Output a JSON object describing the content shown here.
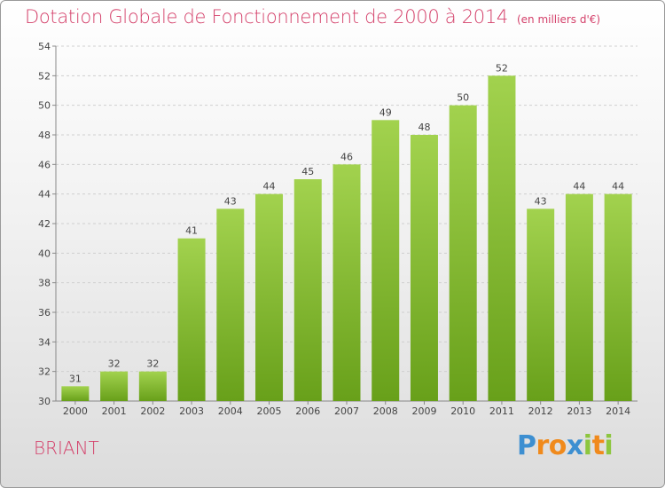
{
  "title": "Dotation Globale de Fonctionnement de 2000 à 2014",
  "subtitle": "(en milliers d'€)",
  "commune": "BRIANT",
  "logo": {
    "p": "P",
    "r": "r",
    "o": "o",
    "x": "x",
    "i1": "i",
    "t": "t",
    "i2": "i"
  },
  "colors": {
    "title": "#d4406a",
    "bar_top": "#a2d24e",
    "bar_bottom": "#68a01a",
    "logo_p": "#3d8fd1",
    "logo_r": "#f08a1c",
    "logo_o": "#f08a1c",
    "logo_x": "#3d8fd1",
    "logo_i": "#8dc63f",
    "logo_t": "#f08a1c"
  },
  "chart_data": {
    "type": "bar",
    "categories": [
      "2000",
      "2001",
      "2002",
      "2003",
      "2004",
      "2005",
      "2006",
      "2007",
      "2008",
      "2009",
      "2010",
      "2011",
      "2012",
      "2013",
      "2014"
    ],
    "values": [
      31,
      32,
      32,
      41,
      43,
      44,
      45,
      46,
      49,
      48,
      50,
      52,
      43,
      44,
      44
    ],
    "ylim": [
      30,
      54
    ],
    "yticks": [
      30,
      32,
      34,
      36,
      38,
      40,
      42,
      44,
      46,
      48,
      50,
      52,
      54
    ],
    "grid": true
  }
}
